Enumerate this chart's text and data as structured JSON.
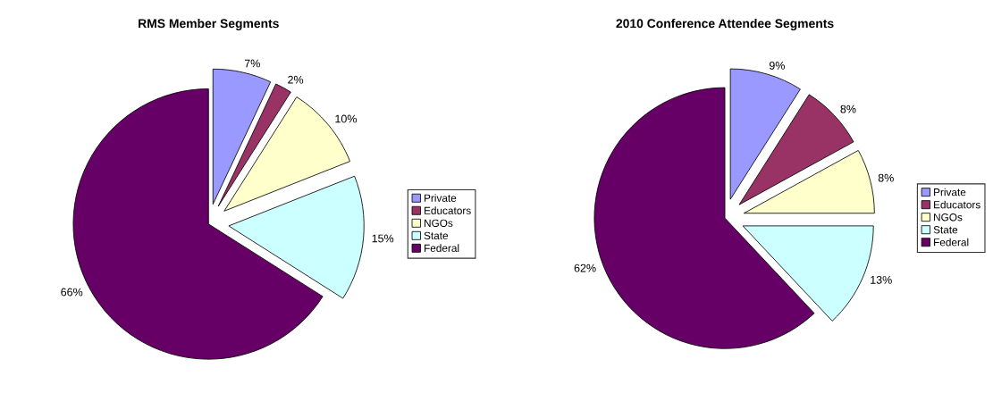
{
  "chart_data": [
    {
      "type": "pie",
      "title": "RMS Member Segments",
      "categories": [
        "Private",
        "Educators",
        "NGOs",
        "State",
        "Federal"
      ],
      "values": [
        7,
        2,
        10,
        15,
        66
      ],
      "value_labels": [
        "7%",
        "2%",
        "10%",
        "15%",
        "66%"
      ],
      "colors": [
        "#9999ff",
        "#993366",
        "#ffffcc",
        "#ccffff",
        "#660066"
      ],
      "legend": "right"
    },
    {
      "type": "pie",
      "title": "2010 Conference Attendee Segments",
      "categories": [
        "Private",
        "Educators",
        "NGOs",
        "State",
        "Federal"
      ],
      "values": [
        9,
        8,
        8,
        13,
        62
      ],
      "value_labels": [
        "9%",
        "8%",
        "8%",
        "13%",
        "62%"
      ],
      "colors": [
        "#9999ff",
        "#993366",
        "#ffffcc",
        "#ccffff",
        "#660066"
      ],
      "legend": "right"
    }
  ]
}
